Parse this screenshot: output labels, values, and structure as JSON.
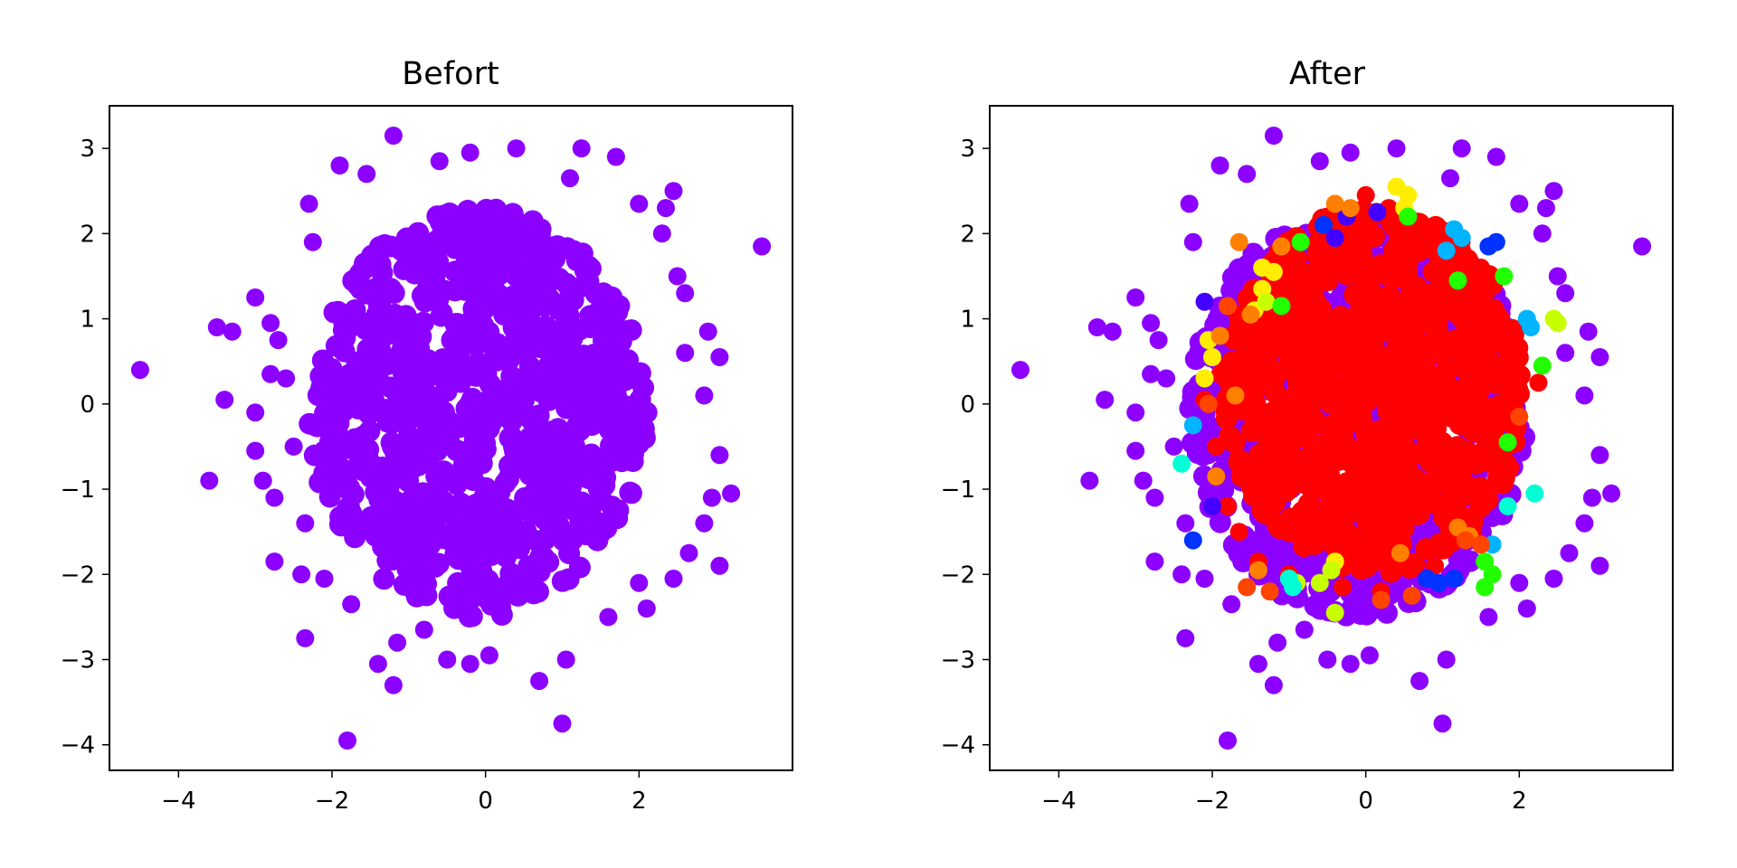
{
  "chart_data": [
    {
      "type": "scatter",
      "title": "Befort",
      "xlabel": "",
      "ylabel": "",
      "xlim": [
        -4.9,
        4.0
      ],
      "ylim": [
        -4.3,
        3.5
      ],
      "xticks": [
        -4,
        -2,
        0,
        2
      ],
      "yticks": [
        -4,
        -3,
        -2,
        -1,
        0,
        1,
        2,
        3
      ],
      "grid": false,
      "legend": "none",
      "colors": {
        "base": "#8c00ff"
      },
      "series": [
        {
          "color": "#8c00ff",
          "core": {
            "center": [
              -0.1,
              -0.1
            ],
            "radius_x": 2.2,
            "radius_y": 2.4,
            "color": "#8c00ff"
          },
          "outliers": [
            [
              -4.5,
              0.4
            ],
            [
              -3.6,
              -0.9
            ],
            [
              -3.5,
              0.9
            ],
            [
              -3.3,
              0.85
            ],
            [
              -3.4,
              0.05
            ],
            [
              -3.0,
              1.25
            ],
            [
              -3.0,
              -0.1
            ],
            [
              -3.0,
              -0.55
            ],
            [
              -2.9,
              -0.9
            ],
            [
              -2.8,
              0.95
            ],
            [
              -2.8,
              0.35
            ],
            [
              -2.7,
              0.75
            ],
            [
              -2.75,
              -1.1
            ],
            [
              -2.75,
              -1.85
            ],
            [
              -2.35,
              -2.75
            ],
            [
              -1.8,
              -3.95
            ],
            [
              -2.3,
              2.35
            ],
            [
              -2.25,
              1.9
            ],
            [
              -1.9,
              2.8
            ],
            [
              -1.2,
              3.15
            ],
            [
              -0.2,
              2.95
            ],
            [
              0.4,
              3.0
            ],
            [
              1.25,
              3.0
            ],
            [
              1.7,
              2.9
            ],
            [
              2.45,
              2.5
            ],
            [
              2.35,
              2.3
            ],
            [
              2.5,
              1.5
            ],
            [
              2.6,
              1.3
            ],
            [
              2.9,
              0.85
            ],
            [
              3.05,
              0.55
            ],
            [
              2.85,
              0.1
            ],
            [
              3.05,
              -0.6
            ],
            [
              3.2,
              -1.05
            ],
            [
              2.95,
              -1.1
            ],
            [
              2.85,
              -1.4
            ],
            [
              3.05,
              -1.9
            ],
            [
              2.65,
              -1.75
            ],
            [
              2.45,
              -2.05
            ],
            [
              2.1,
              -2.4
            ],
            [
              1.6,
              -2.5
            ],
            [
              1.05,
              -3.0
            ],
            [
              1.0,
              -3.75
            ],
            [
              0.7,
              -3.25
            ],
            [
              0.05,
              -2.95
            ],
            [
              -0.2,
              -3.05
            ],
            [
              -0.5,
              -3.0
            ],
            [
              -0.8,
              -2.65
            ],
            [
              -1.15,
              -2.8
            ],
            [
              -1.2,
              -3.3
            ],
            [
              -1.4,
              -3.05
            ],
            [
              -1.75,
              -2.35
            ],
            [
              -2.1,
              -2.05
            ],
            [
              -2.4,
              -2.0
            ],
            [
              3.6,
              1.85
            ],
            [
              2.0,
              -2.1
            ],
            [
              2.3,
              2.0
            ],
            [
              -2.5,
              -0.5
            ],
            [
              -2.6,
              0.3
            ],
            [
              -2.35,
              -1.4
            ],
            [
              -1.55,
              2.7
            ],
            [
              -0.6,
              2.85
            ],
            [
              1.1,
              2.65
            ],
            [
              2.0,
              2.35
            ],
            [
              2.6,
              0.6
            ]
          ]
        }
      ]
    },
    {
      "type": "scatter",
      "title": "After",
      "xlabel": "",
      "ylabel": "",
      "xlim": [
        -4.9,
        4.0
      ],
      "ylim": [
        -4.3,
        3.5
      ],
      "xticks": [
        -4,
        -2,
        0,
        2
      ],
      "yticks": [
        -4,
        -3,
        -2,
        -1,
        0,
        1,
        2,
        3
      ],
      "grid": false,
      "legend": "none",
      "colors": {
        "base": "#8c00ff",
        "core": "#ff0000"
      },
      "series": [
        {
          "color": "#8c00ff",
          "core": {
            "center": [
              -0.1,
              -0.1
            ],
            "radius_x": 2.2,
            "radius_y": 2.4,
            "color": "#8c00ff"
          },
          "outliers": [
            [
              -4.5,
              0.4
            ],
            [
              -3.6,
              -0.9
            ],
            [
              -3.5,
              0.9
            ],
            [
              -3.3,
              0.85
            ],
            [
              -3.4,
              0.05
            ],
            [
              -3.0,
              1.25
            ],
            [
              -3.0,
              -0.1
            ],
            [
              -3.0,
              -0.55
            ],
            [
              -2.9,
              -0.9
            ],
            [
              -2.8,
              0.95
            ],
            [
              -2.8,
              0.35
            ],
            [
              -2.7,
              0.75
            ],
            [
              -2.75,
              -1.1
            ],
            [
              -2.75,
              -1.85
            ],
            [
              -2.35,
              -2.75
            ],
            [
              -1.8,
              -3.95
            ],
            [
              -2.3,
              2.35
            ],
            [
              -2.25,
              1.9
            ],
            [
              -1.9,
              2.8
            ],
            [
              -1.2,
              3.15
            ],
            [
              -0.2,
              2.95
            ],
            [
              0.4,
              3.0
            ],
            [
              1.25,
              3.0
            ],
            [
              1.7,
              2.9
            ],
            [
              2.45,
              2.5
            ],
            [
              2.35,
              2.3
            ],
            [
              2.5,
              1.5
            ],
            [
              2.6,
              1.3
            ],
            [
              2.9,
              0.85
            ],
            [
              3.05,
              0.55
            ],
            [
              2.85,
              0.1
            ],
            [
              3.05,
              -0.6
            ],
            [
              3.2,
              -1.05
            ],
            [
              2.95,
              -1.1
            ],
            [
              2.85,
              -1.4
            ],
            [
              3.05,
              -1.9
            ],
            [
              2.65,
              -1.75
            ],
            [
              2.45,
              -2.05
            ],
            [
              2.1,
              -2.4
            ],
            [
              1.6,
              -2.5
            ],
            [
              1.05,
              -3.0
            ],
            [
              1.0,
              -3.75
            ],
            [
              0.7,
              -3.25
            ],
            [
              0.05,
              -2.95
            ],
            [
              -0.2,
              -3.05
            ],
            [
              -0.5,
              -3.0
            ],
            [
              -0.8,
              -2.65
            ],
            [
              -1.15,
              -2.8
            ],
            [
              -1.2,
              -3.3
            ],
            [
              -1.4,
              -3.05
            ],
            [
              -1.75,
              -2.35
            ],
            [
              -2.1,
              -2.05
            ],
            [
              -2.4,
              -2.0
            ],
            [
              3.6,
              1.85
            ],
            [
              2.0,
              -2.1
            ],
            [
              2.3,
              2.0
            ],
            [
              -2.5,
              -0.5
            ],
            [
              -2.6,
              0.3
            ],
            [
              -2.35,
              -1.4
            ],
            [
              -1.55,
              2.7
            ],
            [
              -0.6,
              2.85
            ],
            [
              1.1,
              2.65
            ],
            [
              2.0,
              2.35
            ],
            [
              2.6,
              0.6
            ]
          ]
        },
        {
          "color": "#ff0000",
          "core": {
            "center": [
              0.1,
              0.15
            ],
            "radius_x": 1.95,
            "radius_y": 2.15,
            "color": "#ff0000"
          },
          "outliers": [
            [
              0.0,
              2.45
            ],
            [
              -0.5,
              2.2
            ],
            [
              0.3,
              2.3
            ],
            [
              0.8,
              2.05
            ],
            [
              1.2,
              1.8
            ],
            [
              1.5,
              1.6
            ],
            [
              -1.1,
              1.8
            ],
            [
              -1.55,
              1.1
            ],
            [
              -1.75,
              0.8
            ],
            [
              -1.9,
              0.35
            ],
            [
              -2.1,
              0.05
            ],
            [
              -1.95,
              -0.5
            ],
            [
              -1.8,
              -1.2
            ],
            [
              -1.65,
              -1.5
            ],
            [
              -1.4,
              -1.85
            ],
            [
              -1.0,
              -2.0
            ],
            [
              -0.3,
              -2.15
            ],
            [
              0.2,
              -2.2
            ],
            [
              0.9,
              -1.9
            ],
            [
              1.4,
              -1.5
            ],
            [
              1.75,
              -0.8
            ],
            [
              1.95,
              0.1
            ],
            [
              2.25,
              0.25
            ],
            [
              1.9,
              0.7
            ]
          ]
        },
        {
          "color": "#ffee00",
          "outliers": [
            [
              0.4,
              2.55
            ],
            [
              0.55,
              2.45
            ],
            [
              -1.35,
              1.6
            ],
            [
              -1.2,
              1.55
            ],
            [
              -1.35,
              1.35
            ],
            [
              -2.05,
              0.75
            ],
            [
              -2.0,
              0.55
            ],
            [
              -2.1,
              0.3
            ],
            [
              -0.4,
              -1.85
            ],
            [
              0.5,
              2.3
            ],
            [
              -1.45,
              1.1
            ]
          ]
        },
        {
          "color": "#c8ff00",
          "outliers": [
            [
              2.5,
              0.95
            ],
            [
              2.45,
              1.0
            ],
            [
              -0.45,
              -1.95
            ],
            [
              -0.6,
              -2.1
            ],
            [
              -0.4,
              -2.45
            ],
            [
              -0.9,
              -2.1
            ],
            [
              -1.3,
              1.2
            ]
          ]
        },
        {
          "color": "#22ff00",
          "outliers": [
            [
              -1.1,
              1.15
            ],
            [
              -0.85,
              1.9
            ],
            [
              1.8,
              1.5
            ],
            [
              1.2,
              1.45
            ],
            [
              2.3,
              0.45
            ],
            [
              1.85,
              -0.45
            ],
            [
              1.55,
              -1.85
            ],
            [
              1.65,
              -2.0
            ],
            [
              1.55,
              -2.15
            ],
            [
              0.55,
              2.2
            ]
          ]
        },
        {
          "color": "#00ffd5",
          "outliers": [
            [
              -2.4,
              -0.7
            ],
            [
              -1.0,
              -2.05
            ],
            [
              2.2,
              -1.05
            ],
            [
              1.85,
              -1.2
            ],
            [
              -0.95,
              -2.15
            ]
          ]
        },
        {
          "color": "#00b4ff",
          "outliers": [
            [
              1.15,
              2.05
            ],
            [
              1.05,
              1.8
            ],
            [
              2.1,
              1.0
            ],
            [
              2.15,
              0.9
            ],
            [
              -2.25,
              -0.25
            ],
            [
              1.65,
              -1.65
            ],
            [
              1.25,
              1.95
            ]
          ]
        },
        {
          "color": "#0033ff",
          "outliers": [
            [
              -0.55,
              2.1
            ],
            [
              1.7,
              1.9
            ],
            [
              1.6,
              1.85
            ],
            [
              -2.25,
              -1.6
            ],
            [
              0.8,
              -2.05
            ],
            [
              1.15,
              -2.05
            ],
            [
              0.95,
              -2.1
            ]
          ]
        },
        {
          "color": "#4400ff",
          "outliers": [
            [
              -0.4,
              1.95
            ],
            [
              0.15,
              2.25
            ],
            [
              -2.0,
              -1.2
            ],
            [
              -2.1,
              1.2
            ],
            [
              -0.25,
              2.2
            ]
          ]
        },
        {
          "color": "#ff8000",
          "outliers": [
            [
              -1.65,
              1.9
            ],
            [
              -1.1,
              1.85
            ],
            [
              -0.4,
              2.35
            ],
            [
              -1.5,
              1.05
            ],
            [
              -1.95,
              -0.85
            ],
            [
              -1.9,
              0.8
            ],
            [
              1.2,
              -1.45
            ],
            [
              1.35,
              -1.55
            ],
            [
              0.45,
              -1.75
            ],
            [
              -1.7,
              0.1
            ],
            [
              -1.4,
              -1.95
            ],
            [
              -0.2,
              2.3
            ]
          ]
        },
        {
          "color": "#ff4400",
          "outliers": [
            [
              -2.05,
              0.0
            ],
            [
              2.0,
              -0.15
            ],
            [
              1.3,
              -1.6
            ],
            [
              0.6,
              -2.25
            ],
            [
              -1.25,
              -2.2
            ],
            [
              -1.55,
              -2.15
            ],
            [
              0.2,
              -2.3
            ],
            [
              -1.8,
              1.15
            ],
            [
              1.5,
              -1.65
            ]
          ]
        }
      ]
    }
  ]
}
